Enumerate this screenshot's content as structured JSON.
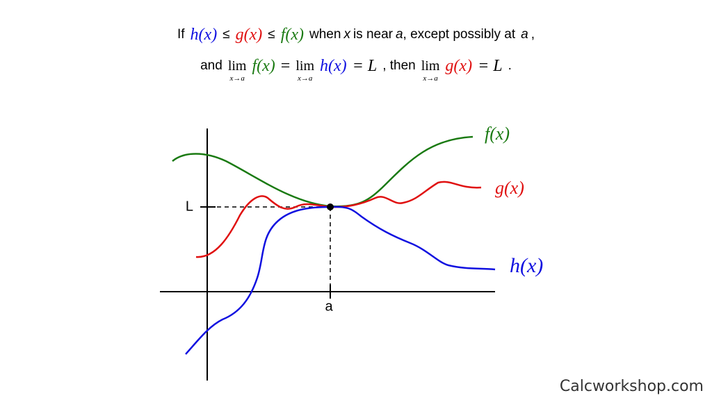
{
  "statement": {
    "line1": {
      "if": "If",
      "h": "h(x)",
      "le1": "≤",
      "g": "g(x)",
      "le2": "≤",
      "f": "f(x)",
      "when": "when",
      "x": "x",
      "near": "is near",
      "a1": "a",
      "except": ", except possibly at",
      "a2": "a",
      "end": ","
    },
    "line2": {
      "and": "and",
      "lim1": "lim",
      "sub1": "x→a",
      "f": "f(x)",
      "eq1": "=",
      "lim2": "lim",
      "sub2": "x→a",
      "h": "h(x)",
      "eqL1": "= L",
      "then": ", then",
      "lim3": "lim",
      "sub3": "x→a",
      "g": "g(x)",
      "eqL2": "= L",
      "end": "."
    }
  },
  "graph": {
    "f_label": "f(x)",
    "g_label": "g(x)",
    "h_label": "h(x)",
    "L_label": "L",
    "a_label": "a"
  },
  "watermark": "Calcworkshop.com"
}
